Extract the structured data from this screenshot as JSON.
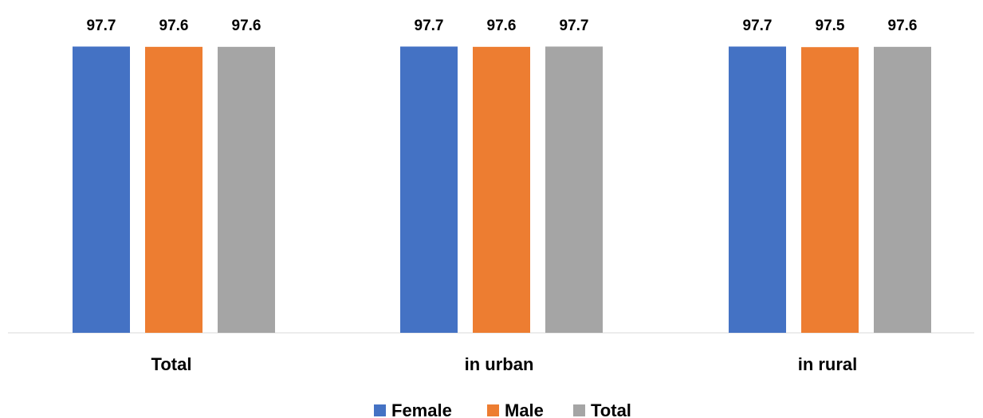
{
  "chart_data": {
    "type": "bar",
    "title": "",
    "xlabel": "",
    "ylabel": "",
    "categories": [
      "Total",
      "in urban",
      "in rural"
    ],
    "series": [
      {
        "name": "Female",
        "values": [
          97.7,
          97.7,
          97.7
        ],
        "labels": [
          "97.7",
          "97.7",
          "97.7"
        ],
        "color": "#4472C4"
      },
      {
        "name": "Male",
        "values": [
          97.6,
          97.6,
          97.5
        ],
        "labels": [
          "97.6",
          "97.6",
          "97.5"
        ],
        "color": "#ED7D31"
      },
      {
        "name": "Total",
        "values": [
          97.6,
          97.7,
          97.6
        ],
        "labels": [
          "97.6",
          "97.7",
          "97.6"
        ],
        "color": "#A5A5A5"
      }
    ],
    "ylim": [
      0,
      100
    ],
    "grid": false,
    "legend": "bottom",
    "axis_line_color": "#D9D9D9"
  }
}
